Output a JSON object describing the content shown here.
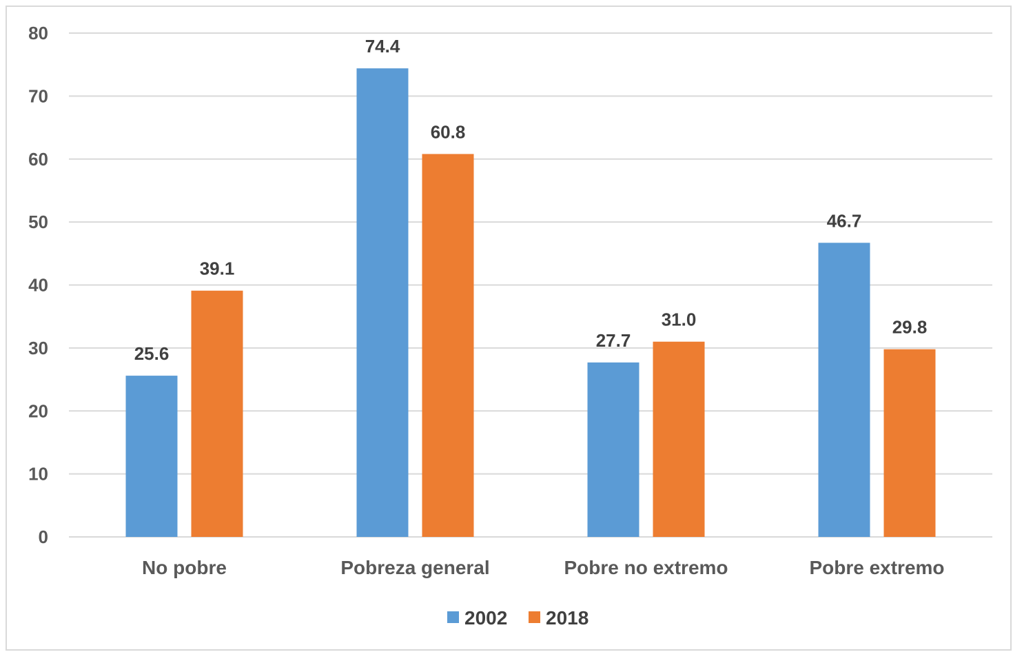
{
  "chart_data": {
    "type": "bar",
    "categories": [
      "No pobre",
      "Pobreza general",
      "Pobre no extremo",
      "Pobre extremo"
    ],
    "series": [
      {
        "name": "2002",
        "values": [
          25.6,
          74.4,
          27.7,
          46.7
        ],
        "labels": [
          "25.6",
          "74.4",
          "27.7",
          "46.7"
        ],
        "color": "#5b9bd5"
      },
      {
        "name": "2018",
        "values": [
          39.1,
          60.8,
          31.0,
          29.8
        ],
        "labels": [
          "39.1",
          "60.8",
          "31.0",
          "29.8"
        ],
        "color": "#ed7d31"
      }
    ],
    "yticks": [
      0,
      10,
      20,
      30,
      40,
      50,
      60,
      70,
      80
    ],
    "ylim": [
      0,
      80
    ],
    "grid": true,
    "legend_position": "bottom",
    "title": "",
    "xlabel": "",
    "ylabel": ""
  }
}
